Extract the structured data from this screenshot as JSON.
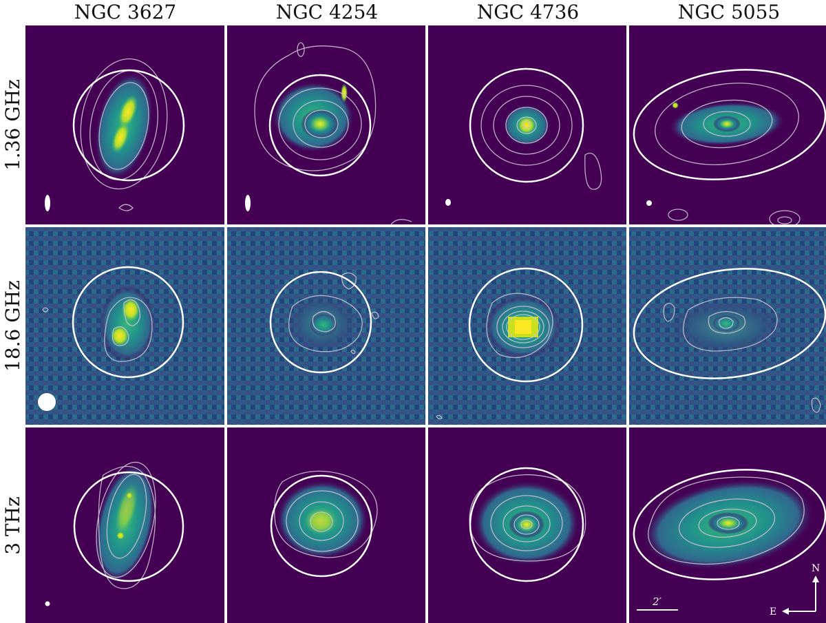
{
  "columns": [
    "NGC 3627",
    "NGC 4254",
    "NGC 4736",
    "NGC 5055"
  ],
  "rows": [
    "1.36 GHz",
    "18.6 GHz",
    "3 THz"
  ],
  "scale_bar_label": "2′",
  "compass": {
    "north": "N",
    "east": "E"
  },
  "colors": {
    "background": "#440154",
    "mid": "#21918c",
    "peak": "#fde725",
    "contour": "#c9c3cf",
    "aperture": "#ffffff"
  }
}
